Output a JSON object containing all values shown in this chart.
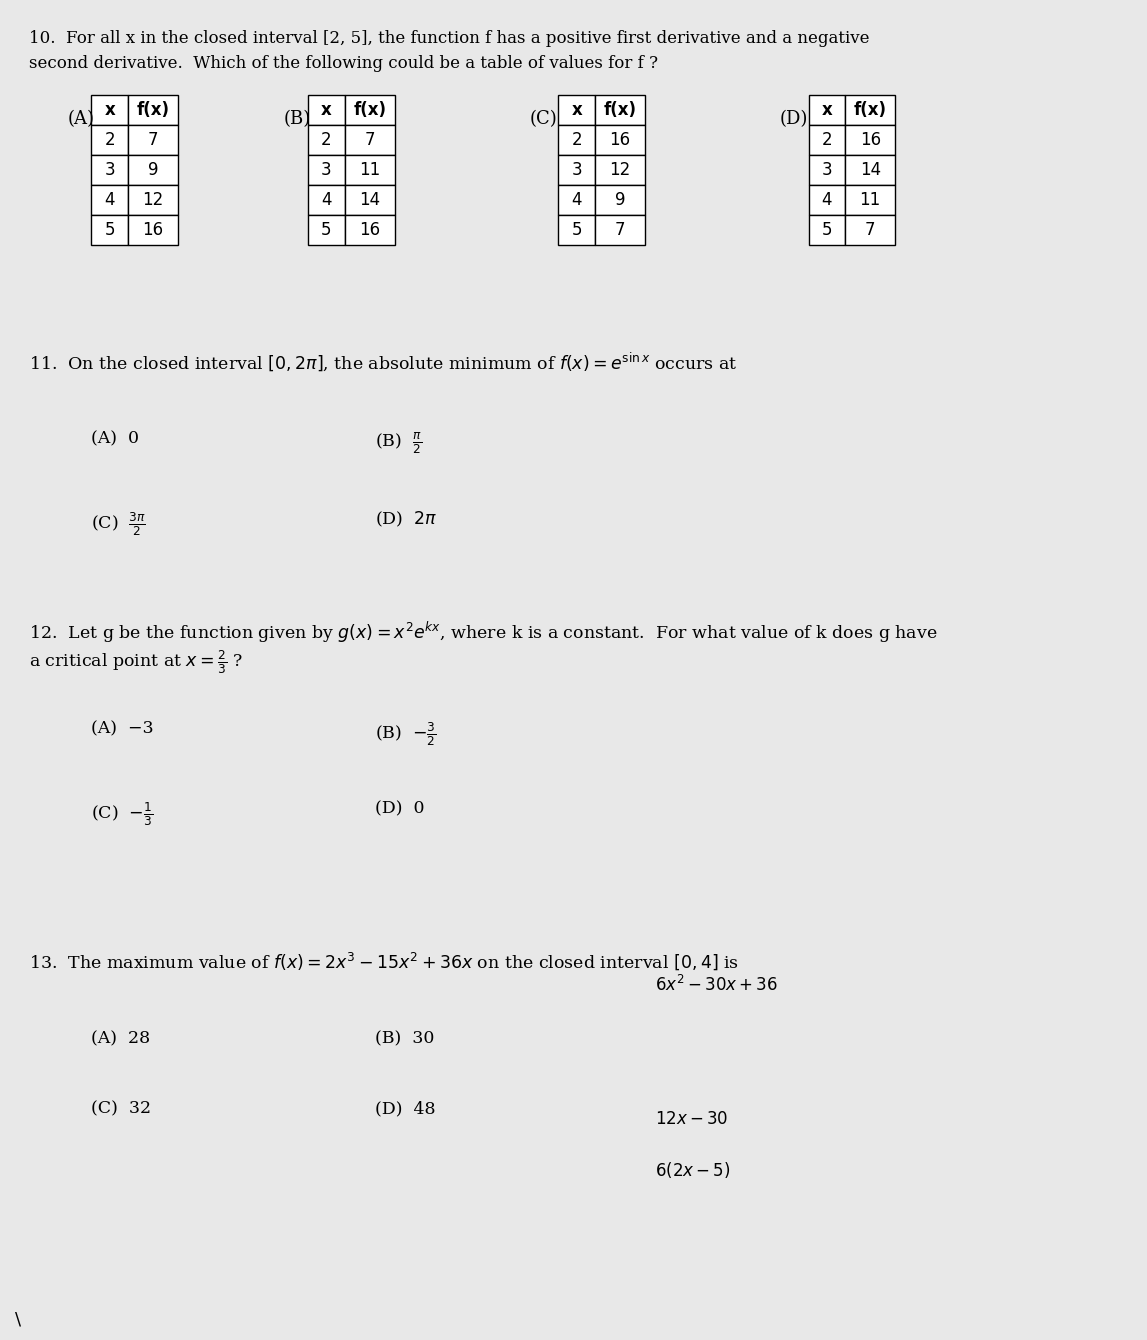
{
  "bg_color": "#e8e8e8",
  "text_color": "#000000",
  "q10_text_line1": "10.  For all x in the closed interval [2, 5], the function f has a positive first derivative and a negative",
  "q10_text_line2": "second derivative.  Which of the following could be a table of values for f ?",
  "tables": {
    "A": {
      "header": [
        "x",
        "f(x)"
      ],
      "rows": [
        [
          2,
          7
        ],
        [
          3,
          9
        ],
        [
          4,
          12
        ],
        [
          5,
          16
        ]
      ]
    },
    "B": {
      "header": [
        "x",
        "f(x)"
      ],
      "rows": [
        [
          2,
          7
        ],
        [
          3,
          11
        ],
        [
          4,
          14
        ],
        [
          5,
          16
        ]
      ]
    },
    "C": {
      "header": [
        "x",
        "f(x)"
      ],
      "rows": [
        [
          2,
          16
        ],
        [
          3,
          12
        ],
        [
          4,
          9
        ],
        [
          5,
          7
        ]
      ]
    },
    "D": {
      "header": [
        "x",
        "f(x)"
      ],
      "rows": [
        [
          2,
          16
        ],
        [
          3,
          14
        ],
        [
          4,
          11
        ],
        [
          5,
          7
        ]
      ]
    }
  },
  "q11_text": "11.  On the closed interval $[0, 2\\pi]$, the absolute minimum of $f(x) = e^{\\sin x}$ occurs at",
  "q11_A": "(A)  0",
  "q11_B_pre": "(B)",
  "q11_B_frac": "\\frac{\\pi}{2}",
  "q11_C_pre": "(C)",
  "q11_C_frac": "\\frac{3\\pi}{2}",
  "q11_D": "(D)  $2\\pi$",
  "q12_text_line1": "12.  Let g be the function given by $g(x) = x^2 e^{kx}$, where k is a constant.  For what value of k does g have",
  "q12_text_line2": "a critical point at $x = \\frac{2}{3}$ ?",
  "q12_A": "(A)  −3",
  "q12_B_pre": "(B)",
  "q12_B_frac": "-\\frac{3}{2}",
  "q12_C_pre": "(C)",
  "q12_C_frac": "-\\frac{1}{3}",
  "q12_D": "(D)  0",
  "q13_text": "13.  The maximum value of $f(x) = 2x^3 - 15x^2 + 36x$ on the closed interval $[0, 4]$ is",
  "q13_A": "(A)  28",
  "q13_B": "(B)  30",
  "q13_C": "(C)  32",
  "q13_D": "(D)  48",
  "handwritten_line1": "$6x^2 - 30x + 36$",
  "handwritten_line2": "$12x - 30$",
  "handwritten_line3": "$6(2x - 5)$"
}
